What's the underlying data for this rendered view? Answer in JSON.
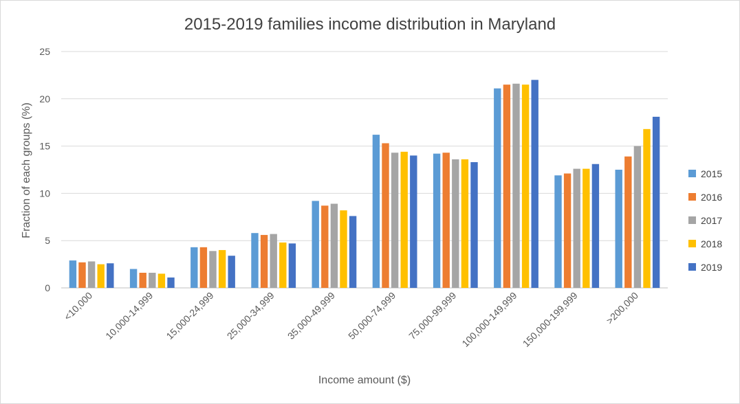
{
  "chart_data": {
    "type": "bar",
    "title": "2015-2019 families income distribution in Maryland",
    "xlabel": "Income amount ($)",
    "ylabel": "Fraction of each groups (%)",
    "ylim": [
      0,
      25
    ],
    "yticks": [
      0,
      5,
      10,
      15,
      20,
      25
    ],
    "grid": true,
    "legend_position": "right",
    "categories": [
      "<10,000",
      "10,000-14,999",
      "15,000-24,999",
      "25,000-34,999",
      "35,000-49,999",
      "50,000-74,999",
      "75,000-99,999",
      "100,000-149,999",
      "150,000-199,999",
      ">200,000"
    ],
    "series": [
      {
        "name": "2015",
        "color": "#5B9BD5",
        "values": [
          2.9,
          2.0,
          4.3,
          5.8,
          9.2,
          16.2,
          14.2,
          21.1,
          11.9,
          12.5
        ]
      },
      {
        "name": "2016",
        "color": "#ED7D31",
        "values": [
          2.7,
          1.6,
          4.3,
          5.6,
          8.7,
          15.3,
          14.3,
          21.5,
          12.1,
          13.9
        ]
      },
      {
        "name": "2017",
        "color": "#A5A5A5",
        "values": [
          2.8,
          1.6,
          3.9,
          5.7,
          8.9,
          14.3,
          13.6,
          21.6,
          12.6,
          15.0
        ]
      },
      {
        "name": "2018",
        "color": "#FFC000",
        "values": [
          2.5,
          1.5,
          4.0,
          4.8,
          8.2,
          14.4,
          13.6,
          21.5,
          12.6,
          16.8
        ]
      },
      {
        "name": "2019",
        "color": "#4472C4",
        "values": [
          2.6,
          1.1,
          3.4,
          4.7,
          7.6,
          14.0,
          13.3,
          22.0,
          13.1,
          18.1
        ]
      }
    ]
  }
}
